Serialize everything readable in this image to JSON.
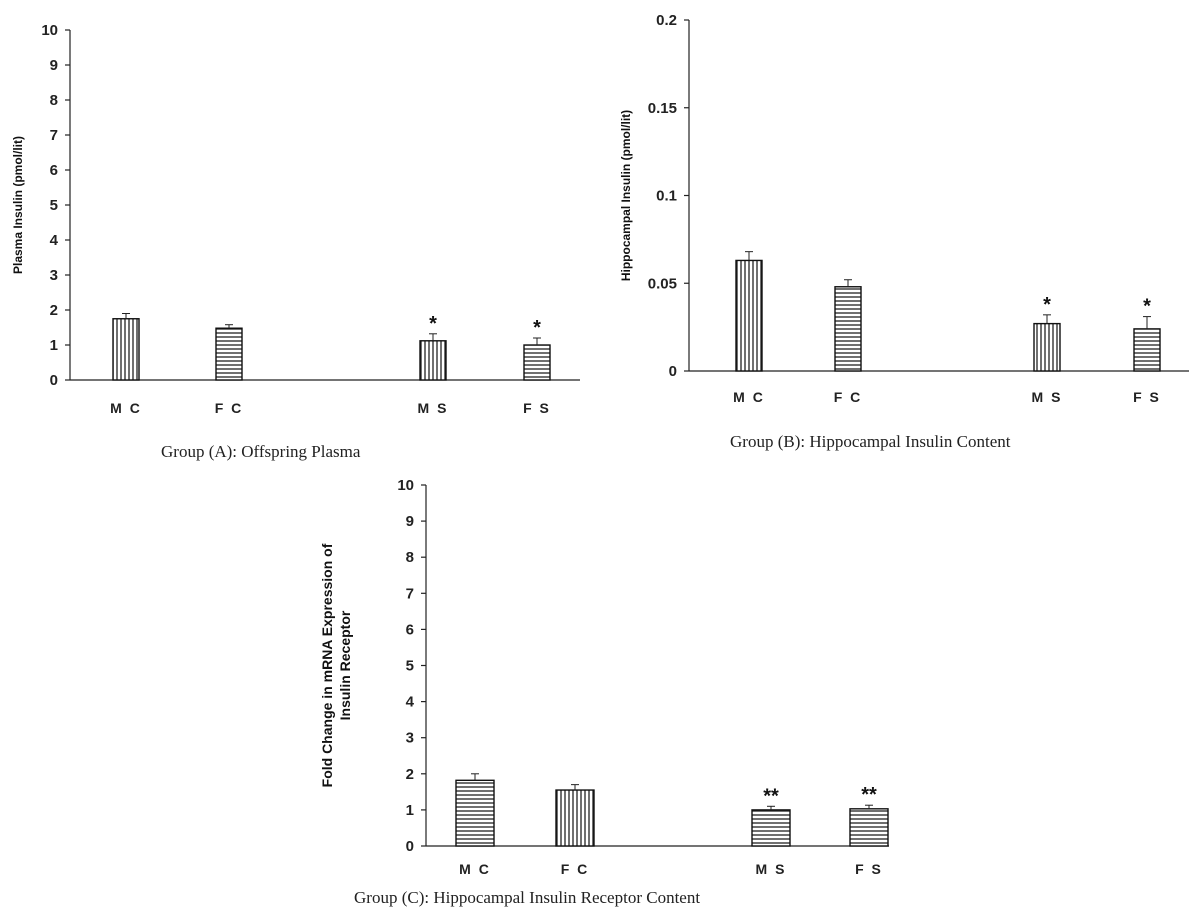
{
  "chart_data": [
    {
      "type": "bar",
      "caption": "Group (A): Offspring Plasma",
      "ylabel": "Plasma Insulin (pmol/lit)",
      "categories": [
        "M C",
        "F C",
        "M S",
        "F S"
      ],
      "values": [
        1.75,
        1.48,
        1.12,
        1.0
      ],
      "errors": [
        0.15,
        0.1,
        0.2,
        0.2
      ],
      "annotations": [
        "",
        "",
        "*",
        "*"
      ],
      "patterns": [
        "vertical",
        "horizontal",
        "vertical",
        "horizontal"
      ],
      "ylim": [
        0,
        10
      ],
      "yticks": [
        "0",
        "1",
        "2",
        "3",
        "4",
        "5",
        "6",
        "7",
        "8",
        "9",
        "10"
      ],
      "grid": false
    },
    {
      "type": "bar",
      "caption": "Group (B): Hippocampal Insulin Content",
      "ylabel": "Hippocampal Insulin (pmol/lit)",
      "categories": [
        "M C",
        "F C",
        "M S",
        "F S"
      ],
      "values": [
        0.063,
        0.048,
        0.027,
        0.024
      ],
      "errors": [
        0.005,
        0.004,
        0.005,
        0.007
      ],
      "annotations": [
        "",
        "",
        "*",
        "*"
      ],
      "patterns": [
        "vertical",
        "horizontal",
        "vertical",
        "horizontal"
      ],
      "ylim": [
        0,
        0.2
      ],
      "yticks": [
        "0",
        "0.05",
        "0.1",
        "0.15",
        "0.2"
      ],
      "grid": false
    },
    {
      "type": "bar",
      "caption": "Group (C): Hippocampal Insulin Receptor Content",
      "ylabel_lines": [
        "Fold Change in mRNA  Expression of",
        "Insulin Receptor"
      ],
      "categories": [
        "M C",
        "F C",
        "M S",
        "F S"
      ],
      "values": [
        1.82,
        1.55,
        1.0,
        1.03
      ],
      "errors": [
        0.18,
        0.15,
        0.1,
        0.1
      ],
      "annotations": [
        "",
        "",
        "**",
        "**"
      ],
      "patterns": [
        "horizontal",
        "vertical",
        "horizontal",
        "horizontal"
      ],
      "ylim": [
        0,
        10
      ],
      "yticks": [
        "0",
        "1",
        "2",
        "3",
        "4",
        "5",
        "6",
        "7",
        "8",
        "9",
        "10"
      ],
      "grid": false
    }
  ]
}
